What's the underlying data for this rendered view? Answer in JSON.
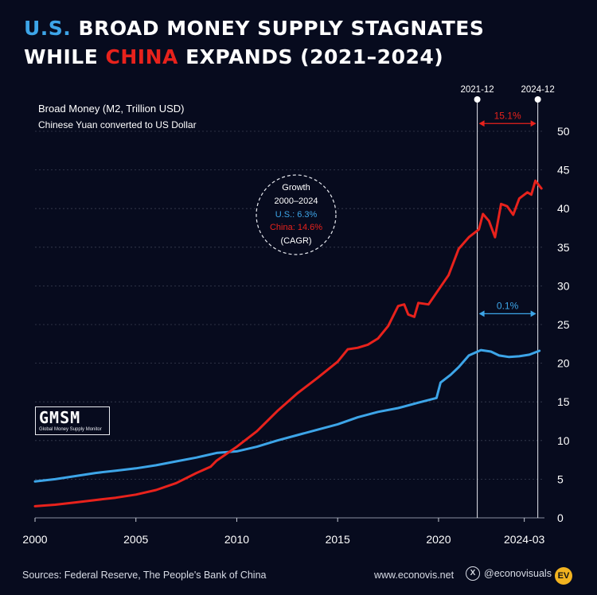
{
  "title": {
    "us_word": "U.S.",
    "part1": " BROAD MONEY SUPPLY STAGNATES",
    "part2": "WHILE ",
    "china_word": "CHINA",
    "part3": " EXPANDS (2021–2024)"
  },
  "footer": {
    "sources": "Sources:  Federal Reserve, The People's Bank of China",
    "website": "www.econovis.net",
    "handle": "@econovisuals",
    "x_icon": "X",
    "ev_logo": "EV"
  },
  "logo": {
    "big": "GMSM",
    "small": "Global Money Supply Monitor"
  },
  "colors": {
    "background": "#070b1e",
    "us": "#3da5e8",
    "china": "#e8221c",
    "text": "#ffffff"
  },
  "chart_data": {
    "type": "line",
    "subtitle1": "Broad Money (M2, Trillion USD)",
    "subtitle2": "Chinese Yuan converted to US Dollar",
    "x_ticks": [
      "2000",
      "2005",
      "2010",
      "2015",
      "2020",
      "2024-03"
    ],
    "y_ticks": [
      "0",
      "5",
      "10",
      "15",
      "20",
      "25",
      "30",
      "35",
      "40",
      "45",
      "50"
    ],
    "xlim": [
      2000,
      2025.25
    ],
    "ylim": [
      0,
      50
    ],
    "markers": [
      {
        "label": "2021-12",
        "x": 2021.92
      },
      {
        "label": "2024-12",
        "x": 2024.92
      }
    ],
    "annotations": [
      {
        "text": "15.1%",
        "series": "China",
        "y": 51
      },
      {
        "text": "0.1%",
        "series": "U.S.",
        "y": 26.4
      }
    ],
    "cagr": {
      "line1": "Growth",
      "line2": "2000–2024",
      "us": "U.S.: 6.3%",
      "china": "China: 14.6%",
      "note": "(CAGR)"
    },
    "series": [
      {
        "name": "U.S.",
        "color": "#3da5e8",
        "points": [
          [
            2000,
            4.7
          ],
          [
            2001,
            5.0
          ],
          [
            2002,
            5.4
          ],
          [
            2003,
            5.8
          ],
          [
            2004,
            6.1
          ],
          [
            2005,
            6.4
          ],
          [
            2006,
            6.8
          ],
          [
            2007,
            7.3
          ],
          [
            2008,
            7.8
          ],
          [
            2009,
            8.4
          ],
          [
            2010,
            8.6
          ],
          [
            2011,
            9.2
          ],
          [
            2012,
            10.0
          ],
          [
            2013,
            10.7
          ],
          [
            2014,
            11.4
          ],
          [
            2015,
            12.1
          ],
          [
            2016,
            13.0
          ],
          [
            2017,
            13.7
          ],
          [
            2018,
            14.2
          ],
          [
            2019,
            14.9
          ],
          [
            2019.9,
            15.5
          ],
          [
            2020.1,
            17.5
          ],
          [
            2020.6,
            18.5
          ],
          [
            2021,
            19.5
          ],
          [
            2021.5,
            21.0
          ],
          [
            2022.1,
            21.7
          ],
          [
            2022.6,
            21.5
          ],
          [
            2023.0,
            21.0
          ],
          [
            2023.5,
            20.8
          ],
          [
            2024.0,
            20.9
          ],
          [
            2024.5,
            21.1
          ],
          [
            2025.0,
            21.6
          ]
        ]
      },
      {
        "name": "China",
        "color": "#e8221c",
        "points": [
          [
            2000,
            1.5
          ],
          [
            2001,
            1.7
          ],
          [
            2002,
            2.0
          ],
          [
            2003,
            2.3
          ],
          [
            2004,
            2.6
          ],
          [
            2005,
            3.0
          ],
          [
            2006,
            3.6
          ],
          [
            2007,
            4.5
          ],
          [
            2008,
            5.8
          ],
          [
            2008.7,
            6.6
          ],
          [
            2009,
            7.4
          ],
          [
            2010,
            9.2
          ],
          [
            2011,
            11.2
          ],
          [
            2012,
            13.8
          ],
          [
            2013,
            16.1
          ],
          [
            2014,
            18.1
          ],
          [
            2015,
            20.2
          ],
          [
            2015.5,
            21.8
          ],
          [
            2016,
            22.0
          ],
          [
            2016.5,
            22.4
          ],
          [
            2017,
            23.2
          ],
          [
            2017.5,
            24.8
          ],
          [
            2018,
            27.4
          ],
          [
            2018.3,
            27.6
          ],
          [
            2018.5,
            26.3
          ],
          [
            2018.8,
            26.0
          ],
          [
            2019,
            27.8
          ],
          [
            2019.5,
            27.6
          ],
          [
            2020,
            29.5
          ],
          [
            2020.5,
            31.4
          ],
          [
            2021,
            34.8
          ],
          [
            2021.5,
            36.3
          ],
          [
            2022,
            37.3
          ],
          [
            2022.2,
            39.3
          ],
          [
            2022.5,
            38.4
          ],
          [
            2022.8,
            36.3
          ],
          [
            2023.1,
            40.6
          ],
          [
            2023.4,
            40.3
          ],
          [
            2023.7,
            39.2
          ],
          [
            2024.0,
            41.3
          ],
          [
            2024.4,
            42.1
          ],
          [
            2024.6,
            41.8
          ],
          [
            2024.8,
            43.6
          ],
          [
            2025.1,
            42.6
          ]
        ]
      }
    ]
  }
}
